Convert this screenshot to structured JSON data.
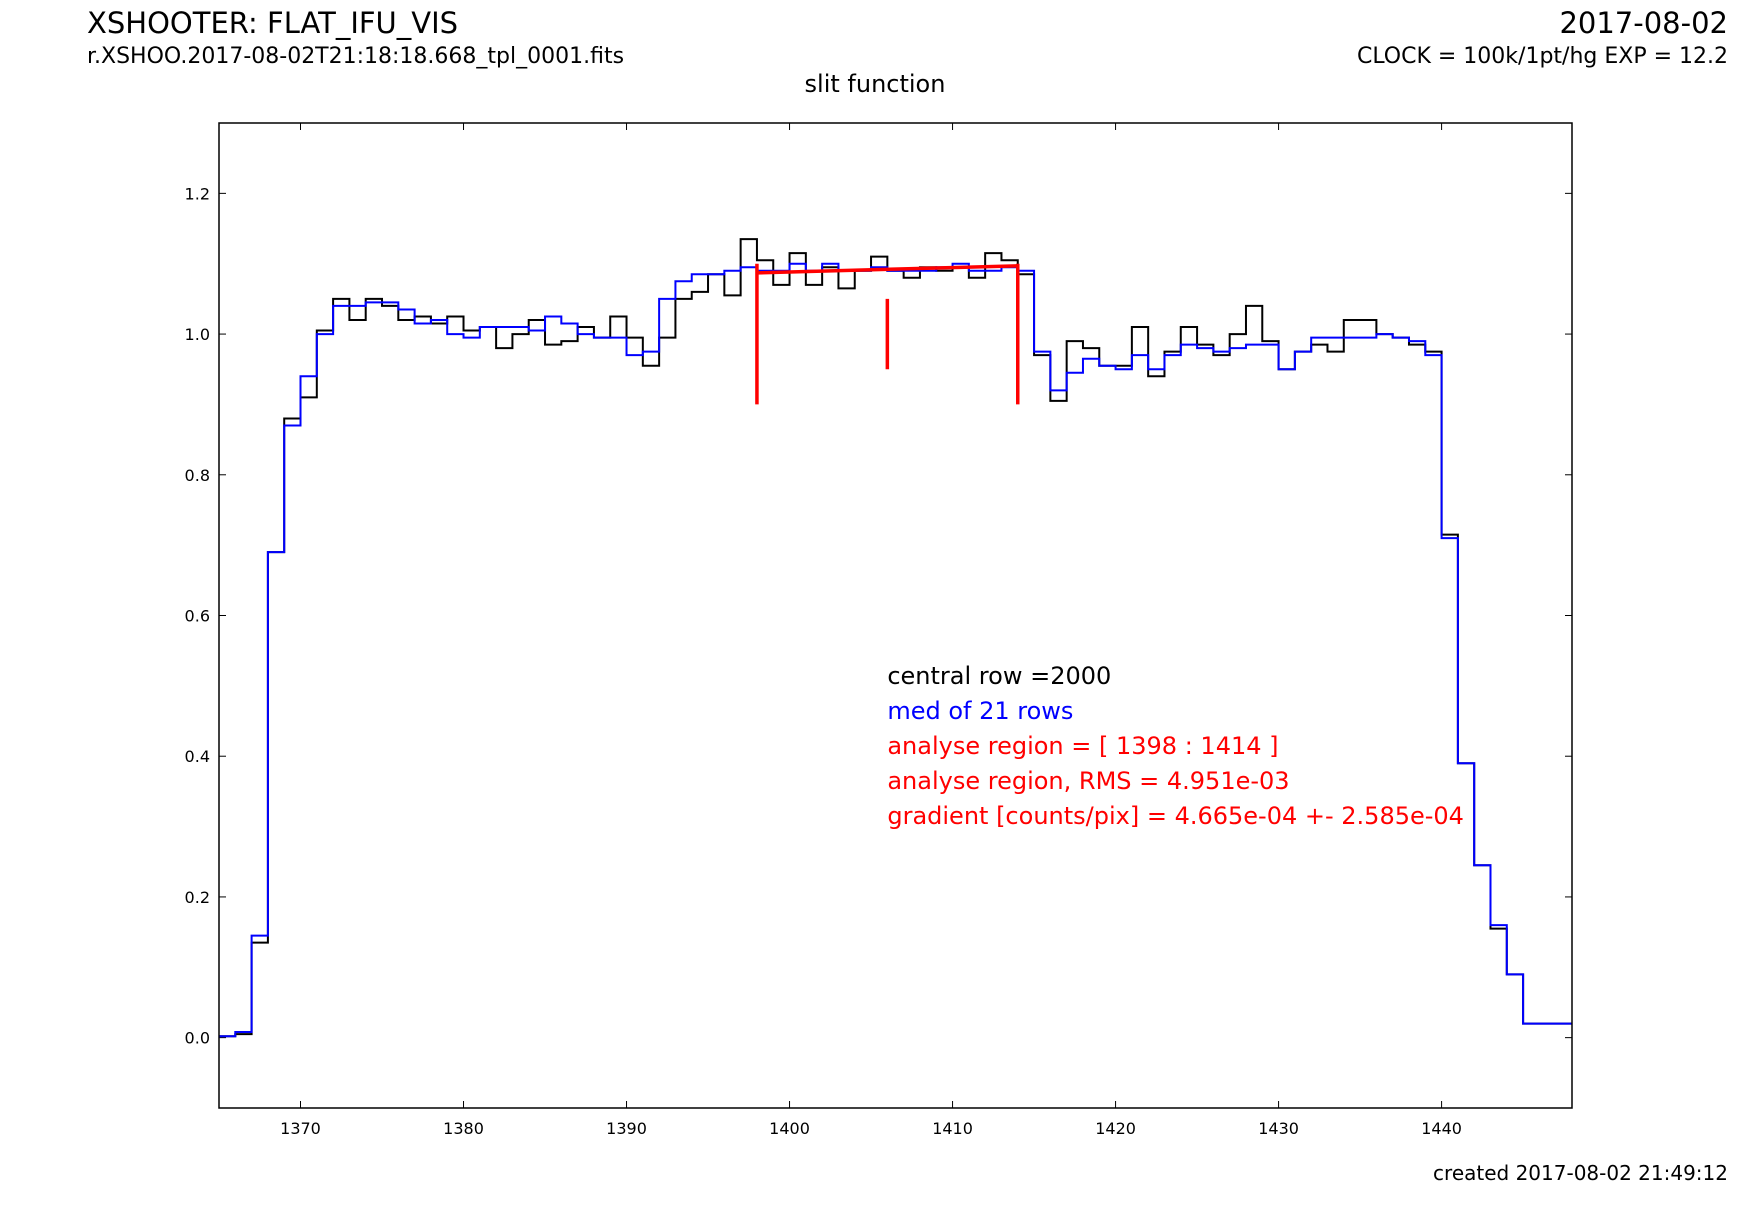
{
  "header": {
    "title": "XSHOOTER: FLAT_IFU_VIS",
    "filename": "r.XSHOO.2017-08-02T21:18:18.668_tpl_0001.fits",
    "date": "2017-08-02",
    "clock": "CLOCK = 100k/1pt/hg EXP = 12.2"
  },
  "footer": {
    "created": "created 2017-08-02 21:49:12"
  },
  "colors": {
    "central": "#000000",
    "median": "#0000ff",
    "analysis": "#ff0000"
  },
  "chart_data": {
    "type": "line",
    "title": "slit function",
    "xlabel": "",
    "ylabel": "",
    "xlim": [
      1365,
      1448
    ],
    "ylim": [
      -0.1,
      1.3
    ],
    "xticks": [
      1370,
      1380,
      1390,
      1400,
      1410,
      1420,
      1430,
      1440
    ],
    "yticks": [
      0.0,
      0.2,
      0.4,
      0.6,
      0.8,
      1.0,
      1.2
    ],
    "step": "pre",
    "series": [
      {
        "name": "central row =2000",
        "color": "#000000",
        "x": [
          1365,
          1366,
          1367,
          1368,
          1369,
          1370,
          1371,
          1372,
          1373,
          1374,
          1375,
          1376,
          1377,
          1378,
          1379,
          1380,
          1381,
          1382,
          1383,
          1384,
          1385,
          1386,
          1387,
          1388,
          1389,
          1390,
          1391,
          1392,
          1393,
          1394,
          1395,
          1396,
          1397,
          1398,
          1399,
          1400,
          1401,
          1402,
          1403,
          1404,
          1405,
          1406,
          1407,
          1408,
          1409,
          1410,
          1411,
          1412,
          1413,
          1414,
          1415,
          1416,
          1417,
          1418,
          1419,
          1420,
          1421,
          1422,
          1423,
          1424,
          1425,
          1426,
          1427,
          1428,
          1429,
          1430,
          1431,
          1432,
          1433,
          1434,
          1435,
          1436,
          1437,
          1438,
          1439,
          1440,
          1441,
          1442,
          1443,
          1444,
          1445,
          1446,
          1447,
          1448
        ],
        "y": [
          0.0,
          0.002,
          0.005,
          0.135,
          0.69,
          0.88,
          0.91,
          1.005,
          1.05,
          1.02,
          1.05,
          1.04,
          1.02,
          1.025,
          1.015,
          1.025,
          1.005,
          1.01,
          0.98,
          1.0,
          1.02,
          0.985,
          0.99,
          1.01,
          0.995,
          1.025,
          0.995,
          0.955,
          0.995,
          1.05,
          1.06,
          1.085,
          1.055,
          1.135,
          1.105,
          1.07,
          1.115,
          1.07,
          1.095,
          1.065,
          1.09,
          1.11,
          1.09,
          1.08,
          1.095,
          1.09,
          1.095,
          1.08,
          1.115,
          1.105,
          1.085,
          0.97,
          0.905,
          0.99,
          0.98,
          0.955,
          0.955,
          1.01,
          0.94,
          0.975,
          1.01,
          0.985,
          0.97,
          1.0,
          1.04,
          0.99,
          0.95,
          0.975,
          0.985,
          0.975,
          1.02,
          1.02,
          1.0,
          0.995,
          0.985,
          0.975,
          0.715,
          0.39,
          0.245,
          0.155,
          0.09,
          0.02,
          0.02,
          0.02
        ]
      },
      {
        "name": "med of 21 rows",
        "color": "#0000ff",
        "x": [
          1365,
          1366,
          1367,
          1368,
          1369,
          1370,
          1371,
          1372,
          1373,
          1374,
          1375,
          1376,
          1377,
          1378,
          1379,
          1380,
          1381,
          1382,
          1383,
          1384,
          1385,
          1386,
          1387,
          1388,
          1389,
          1390,
          1391,
          1392,
          1393,
          1394,
          1395,
          1396,
          1397,
          1398,
          1399,
          1400,
          1401,
          1402,
          1403,
          1404,
          1405,
          1406,
          1407,
          1408,
          1409,
          1410,
          1411,
          1412,
          1413,
          1414,
          1415,
          1416,
          1417,
          1418,
          1419,
          1420,
          1421,
          1422,
          1423,
          1424,
          1425,
          1426,
          1427,
          1428,
          1429,
          1430,
          1431,
          1432,
          1433,
          1434,
          1435,
          1436,
          1437,
          1438,
          1439,
          1440,
          1441,
          1442,
          1443,
          1444,
          1445,
          1446,
          1447,
          1448
        ],
        "y": [
          0.0,
          0.002,
          0.008,
          0.145,
          0.69,
          0.87,
          0.94,
          1.0,
          1.04,
          1.04,
          1.045,
          1.045,
          1.035,
          1.015,
          1.02,
          1.0,
          0.995,
          1.01,
          1.01,
          1.01,
          1.005,
          1.025,
          1.015,
          1.0,
          0.995,
          0.995,
          0.97,
          0.975,
          1.05,
          1.075,
          1.085,
          1.085,
          1.09,
          1.095,
          1.09,
          1.09,
          1.1,
          1.09,
          1.1,
          1.09,
          1.09,
          1.095,
          1.09,
          1.09,
          1.09,
          1.095,
          1.1,
          1.09,
          1.09,
          1.095,
          1.09,
          0.975,
          0.92,
          0.945,
          0.965,
          0.955,
          0.95,
          0.97,
          0.95,
          0.97,
          0.985,
          0.98,
          0.975,
          0.98,
          0.985,
          0.985,
          0.95,
          0.975,
          0.995,
          0.995,
          0.995,
          0.995,
          1.0,
          0.995,
          0.99,
          0.97,
          0.71,
          0.39,
          0.245,
          0.16,
          0.09,
          0.02,
          0.02,
          0.02
        ]
      }
    ],
    "analysis": {
      "region": [
        1398,
        1414
      ],
      "center_x": 1406,
      "markers": [
        {
          "x": 1398,
          "y_low": 0.9,
          "y_high": 1.1
        },
        {
          "x": 1406,
          "y_low": 0.95,
          "y_high": 1.05
        },
        {
          "x": 1414,
          "y_low": 0.9,
          "y_high": 1.1
        }
      ],
      "fit_line": {
        "x": [
          1398,
          1414
        ],
        "y": [
          1.087,
          1.097
        ]
      }
    },
    "annotations": [
      {
        "text": "central row =2000",
        "color": "#000000"
      },
      {
        "text": "med of 21 rows",
        "color": "#0000ff"
      },
      {
        "text": "analyse region = [ 1398 : 1414 ]",
        "color": "#ff0000"
      },
      {
        "text": "analyse region, RMS = 4.951e-03",
        "color": "#ff0000"
      },
      {
        "text": "gradient [counts/pix] = 4.665e-04 +- 2.585e-04",
        "color": "#ff0000"
      }
    ]
  }
}
